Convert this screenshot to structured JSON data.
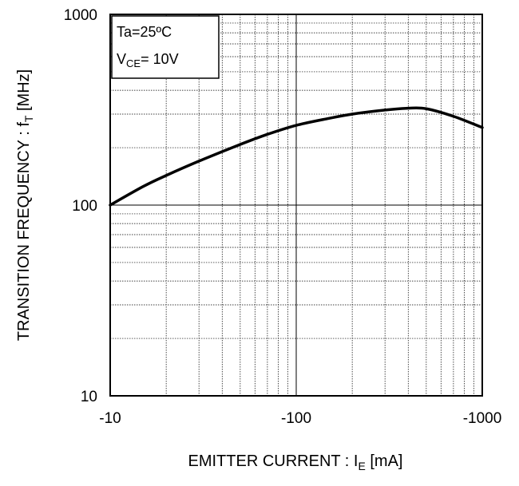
{
  "chart_data": {
    "type": "line",
    "x_scale": "log",
    "y_scale": "log",
    "xlim": [
      -10,
      -1000
    ],
    "ylim": [
      10,
      1000
    ],
    "x_ticks": [
      {
        "value": -10,
        "label": "-10"
      },
      {
        "value": -100,
        "label": "-100"
      },
      {
        "value": -1000,
        "label": "-1000"
      }
    ],
    "y_ticks": [
      {
        "value": 10,
        "label": "10"
      },
      {
        "value": 100,
        "label": "100"
      },
      {
        "value": 1000,
        "label": "1000"
      }
    ],
    "xlabel": {
      "main": "EMITTER CURRENT : I",
      "sub": "E",
      "unit": " [mA]"
    },
    "ylabel": {
      "main": "TRANSITION FREQUENCY : f",
      "sub": "T",
      "unit": " [MHz]"
    },
    "legend": {
      "line1": "Ta=25ºC",
      "line2_main": "V",
      "line2_sub": "CE",
      "line2_rest": "= 10V",
      "placement": "top-left"
    },
    "grid": true,
    "series": [
      {
        "x": [
          -10,
          -15,
          -20,
          -30,
          -50,
          -70,
          -100,
          -150,
          -200,
          -300,
          -400,
          -500,
          -700,
          -1000
        ],
        "y": [
          100,
          125,
          143,
          170,
          208,
          235,
          262,
          285,
          300,
          315,
          322,
          320,
          292,
          255
        ]
      }
    ]
  }
}
